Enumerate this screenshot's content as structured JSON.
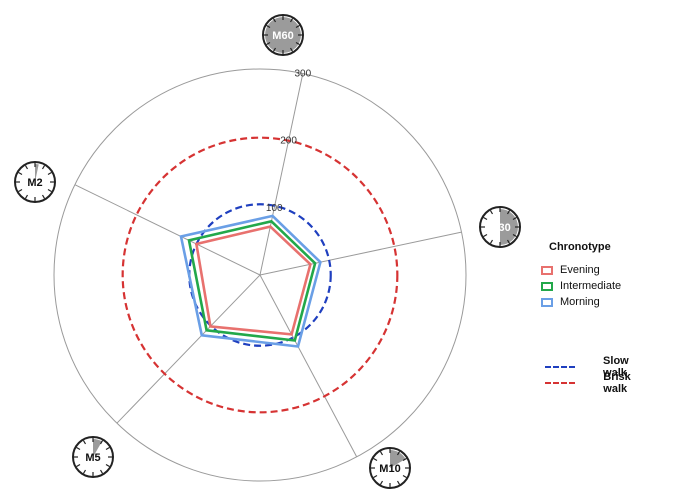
{
  "chart_data": {
    "type": "radar",
    "axes": [
      "M60",
      "M30",
      "M10",
      "M5",
      "M2"
    ],
    "radial_ticks": [
      "100",
      "200",
      "300"
    ],
    "radial_tick_values": [
      100,
      200,
      300
    ],
    "rmax": 300,
    "series": [
      {
        "name": "Evening",
        "color": "#e8716e",
        "values": [
          72,
          75,
          98,
          104,
          103
        ]
      },
      {
        "name": "Intermediate",
        "color": "#22a84a",
        "values": [
          80,
          82,
          108,
          112,
          115
        ]
      },
      {
        "name": "Morning",
        "color": "#6a9fe6",
        "values": [
          88,
          90,
          118,
          122,
          128
        ]
      }
    ],
    "reference_circles": [
      {
        "name": "Slow walk",
        "value": 103,
        "color": "#1f3fbf"
      },
      {
        "name": "Brisk walk",
        "value": 200,
        "color": "#d63333"
      }
    ],
    "clock_fill_fraction": {
      "M60": 1.0,
      "M30": 0.5,
      "M10": 0.1667,
      "M5": 0.0833,
      "M2": 0.0333
    }
  },
  "legend": {
    "title": "Chronotype",
    "walk_items": [
      "Slow walk",
      "Brisk walk"
    ]
  }
}
